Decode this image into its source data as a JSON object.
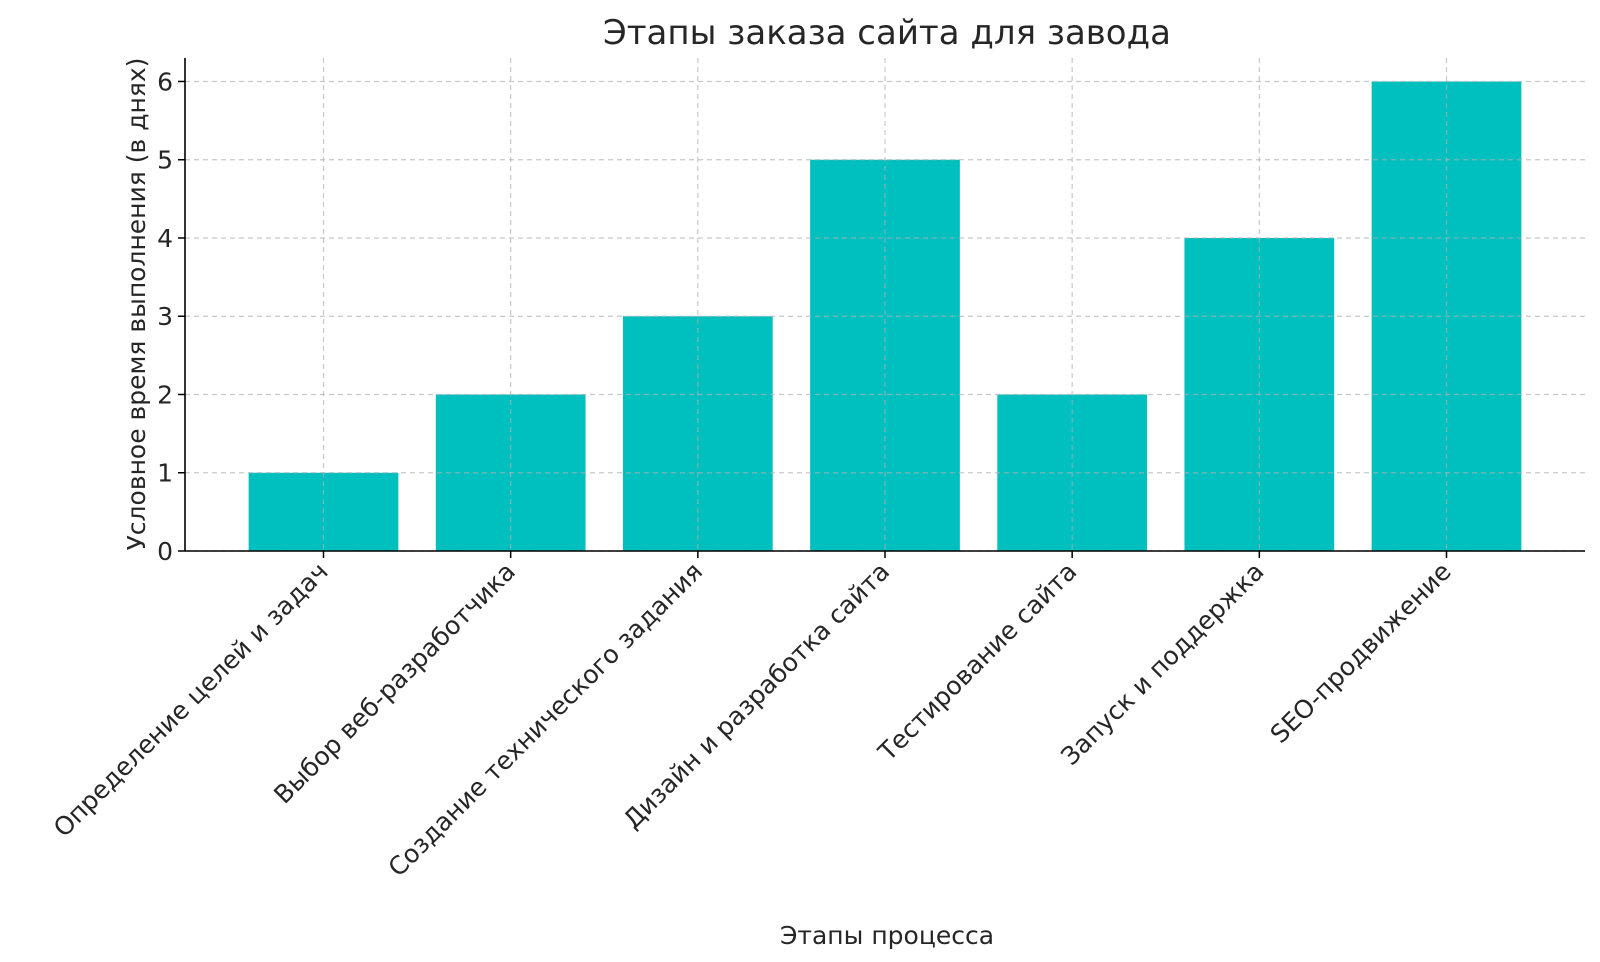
{
  "chart_data": {
    "type": "bar",
    "title": "Этапы заказа сайта для завода",
    "xlabel": "Этапы процесса",
    "ylabel": "Условное время выполнения (в днях)",
    "categories": [
      "Определение целей и задач",
      "Выбор веб-разработчика",
      "Создание технического задания",
      "Дизайн и разработка сайта",
      "Тестирование сайта",
      "Запуск и поддержка",
      "SEO-продвижение"
    ],
    "values": [
      1,
      2,
      3,
      5,
      2,
      4,
      6
    ],
    "ylim": [
      0,
      6.3
    ],
    "yticks": [
      "0",
      "1",
      "2",
      "3",
      "4",
      "5",
      "6"
    ],
    "grid": true,
    "bar_color": "#00BFBF",
    "tick_label_rotation": 45
  }
}
